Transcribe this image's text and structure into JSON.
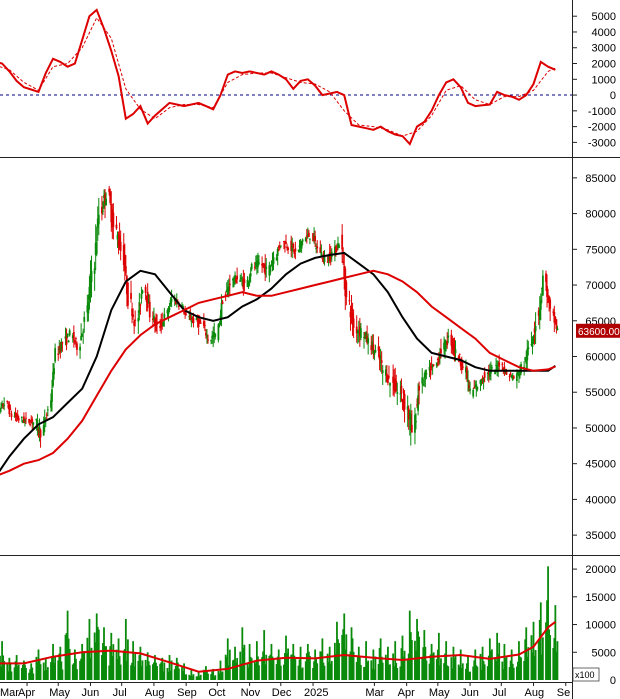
{
  "chart_data": [
    {
      "type": "line",
      "panel": "oscillator",
      "title": "",
      "ylim": [
        -3800,
        5900
      ],
      "y_ticks": [
        5000,
        4000,
        3000,
        2000,
        1000,
        0,
        -1000,
        -2000,
        -3000
      ],
      "zero_line": "dashed",
      "series": [
        {
          "color": "#dd0000",
          "style": "solid",
          "x": [
            "2024-03-01",
            "2024-03-08",
            "2024-03-15",
            "2024-03-22",
            "2024-03-29",
            "2024-04-05",
            "2024-04-12",
            "2024-04-19",
            "2024-04-26",
            "2024-05-03",
            "2024-05-10",
            "2024-05-17",
            "2024-05-24",
            "2024-05-31",
            "2024-06-07",
            "2024-06-14",
            "2024-06-21",
            "2024-06-28",
            "2024-07-05",
            "2024-07-12",
            "2024-07-19",
            "2024-07-26",
            "2024-08-02",
            "2024-08-09",
            "2024-08-16",
            "2024-08-23",
            "2024-08-30",
            "2024-09-06",
            "2024-09-13",
            "2024-09-20",
            "2024-09-27",
            "2024-10-04",
            "2024-10-11",
            "2024-10-18",
            "2024-10-25",
            "2024-11-01",
            "2024-11-08",
            "2024-11-15",
            "2024-11-22",
            "2024-11-29",
            "2024-12-06",
            "2024-12-13",
            "2024-12-20",
            "2024-12-27",
            "2025-01-03",
            "2025-01-10",
            "2025-01-17",
            "2025-01-24",
            "2025-01-31",
            "2025-02-07",
            "2025-02-14",
            "2025-02-21",
            "2025-02-28",
            "2025-03-07",
            "2025-03-14",
            "2025-03-21",
            "2025-03-28",
            "2025-04-04",
            "2025-04-11",
            "2025-04-18",
            "2025-04-25",
            "2025-05-02",
            "2025-05-09",
            "2025-05-16",
            "2025-05-23",
            "2025-05-30",
            "2025-06-06",
            "2025-06-13",
            "2025-06-20",
            "2025-06-27",
            "2025-07-04",
            "2025-07-11",
            "2025-07-18",
            "2025-07-25",
            "2025-08-01",
            "2025-08-08",
            "2025-08-15",
            "2025-08-22"
          ],
          "values": [
            2100,
            2000,
            1500,
            900,
            500,
            350,
            200,
            1400,
            2300,
            2100,
            1800,
            2000,
            3500,
            5000,
            5400,
            4200,
            2800,
            1200,
            -1500,
            -1200,
            -700,
            -1800,
            -1300,
            -900,
            -500,
            -600,
            -700,
            -600,
            -500,
            -700,
            -900,
            0,
            1300,
            1500,
            1400,
            1500,
            1400,
            1300,
            1500,
            1300,
            1000,
            400,
            900,
            1000,
            600,
            0,
            100,
            200,
            0,
            -1900,
            -2000,
            -2100,
            -2200,
            -2000,
            -2300,
            -2500,
            -2600,
            -3100,
            -2000,
            -1700,
            -1000,
            0,
            800,
            1000,
            500,
            -500,
            -700,
            -650,
            -600,
            200,
            0,
            -100,
            -300,
            0,
            700,
            2100,
            1800,
            1600
          ]
        },
        {
          "color": "#dd0000",
          "style": "dashed",
          "x": [
            "2024-03-01",
            "2024-03-15",
            "2024-03-29",
            "2024-04-12",
            "2024-04-26",
            "2024-05-10",
            "2024-05-24",
            "2024-06-07",
            "2024-06-21",
            "2024-07-05",
            "2024-07-19",
            "2024-08-02",
            "2024-08-16",
            "2024-08-30",
            "2024-09-13",
            "2024-09-27",
            "2024-10-11",
            "2024-10-25",
            "2024-11-08",
            "2024-11-22",
            "2024-12-06",
            "2024-12-20",
            "2025-01-03",
            "2025-01-17",
            "2025-01-31",
            "2025-02-14",
            "2025-02-28",
            "2025-03-14",
            "2025-03-28",
            "2025-04-11",
            "2025-04-25",
            "2025-05-09",
            "2025-05-23",
            "2025-06-06",
            "2025-06-20",
            "2025-07-04",
            "2025-07-18",
            "2025-08-01",
            "2025-08-15",
            "2025-08-22"
          ],
          "values": [
            1900,
            1600,
            800,
            300,
            1800,
            2000,
            3000,
            4900,
            3600,
            400,
            -900,
            -1500,
            -800,
            -600,
            -600,
            -800,
            800,
            1300,
            1400,
            1400,
            1100,
            800,
            700,
            200,
            -1000,
            -1900,
            -2000,
            -2200,
            -2600,
            -2300,
            -1300,
            300,
            600,
            -300,
            -600,
            -100,
            -100,
            300,
            1500,
            1700
          ]
        }
      ]
    },
    {
      "type": "candlestick",
      "panel": "price",
      "title": "",
      "ylim": [
        32500,
        87500
      ],
      "y_ticks": [
        85000,
        80000,
        75000,
        70000,
        65000,
        60000,
        55000,
        50000,
        45000,
        40000,
        35000
      ],
      "last_price_label": "63600.00",
      "last_price": 63600,
      "candle_colors": {
        "up": "#0a8a0a",
        "down": "#dd0000"
      },
      "ohlc_weekly": {
        "x": [
          "2024-03-01",
          "2024-03-08",
          "2024-03-15",
          "2024-03-22",
          "2024-03-29",
          "2024-04-05",
          "2024-04-12",
          "2024-04-19",
          "2024-04-26",
          "2024-05-03",
          "2024-05-10",
          "2024-05-17",
          "2024-05-24",
          "2024-05-31",
          "2024-06-07",
          "2024-06-14",
          "2024-06-21",
          "2024-06-28",
          "2024-07-05",
          "2024-07-12",
          "2024-07-19",
          "2024-07-26",
          "2024-08-02",
          "2024-08-09",
          "2024-08-16",
          "2024-08-23",
          "2024-08-30",
          "2024-09-06",
          "2024-09-13",
          "2024-09-20",
          "2024-09-27",
          "2024-10-04",
          "2024-10-11",
          "2024-10-18",
          "2024-10-25",
          "2024-11-01",
          "2024-11-08",
          "2024-11-15",
          "2024-11-22",
          "2024-11-29",
          "2024-12-06",
          "2024-12-13",
          "2024-12-20",
          "2024-12-27",
          "2025-01-03",
          "2025-01-10",
          "2025-01-17",
          "2025-01-24",
          "2025-01-31",
          "2025-02-07",
          "2025-02-14",
          "2025-02-21",
          "2025-02-28",
          "2025-03-07",
          "2025-03-14",
          "2025-03-21",
          "2025-03-28",
          "2025-04-04",
          "2025-04-11",
          "2025-04-18",
          "2025-04-25",
          "2025-05-02",
          "2025-05-09",
          "2025-05-16",
          "2025-05-23",
          "2025-05-30",
          "2025-06-06",
          "2025-06-13",
          "2025-06-20",
          "2025-06-27",
          "2025-07-04",
          "2025-07-11",
          "2025-07-18",
          "2025-07-25",
          "2025-08-01",
          "2025-08-08",
          "2025-08-15",
          "2025-08-22"
        ],
        "close": [
          52000,
          53500,
          51800,
          51200,
          51000,
          50800,
          49500,
          52500,
          60500,
          62000,
          63000,
          61500,
          65000,
          72000,
          80000,
          83000,
          78000,
          75000,
          68000,
          64500,
          70000,
          66000,
          64000,
          65500,
          68000,
          67500,
          65500,
          65000,
          64500,
          62500,
          63000,
          68000,
          70500,
          71000,
          70000,
          72500,
          73000,
          72000,
          74000,
          76000,
          75500,
          74500,
          76500,
          77000,
          75000,
          73500,
          74500,
          76000,
          68000,
          64000,
          63500,
          62000,
          60500,
          58000,
          56500,
          55000,
          53500,
          49500,
          56000,
          57500,
          58500,
          61000,
          62500,
          60500,
          58500,
          55000,
          56000,
          57500,
          58000,
          59000,
          57500,
          57000,
          58500,
          61000,
          65000,
          71000,
          66000,
          63600
        ],
        "range": [
          3000,
          2500,
          2500,
          2000,
          2000,
          2000,
          3500,
          3000,
          3000,
          3500,
          3000,
          3000,
          4000,
          5000,
          6000,
          5000,
          5000,
          4500,
          4000,
          4000,
          4000,
          3500,
          3000,
          3000,
          3000,
          2500,
          2000,
          2000,
          2500,
          2500,
          3000,
          3000,
          3000,
          2500,
          3000,
          2500,
          2500,
          3000,
          3000,
          3000,
          2500,
          3000,
          2500,
          2500,
          3000,
          2500,
          3000,
          2500,
          5000,
          4500,
          4000,
          3500,
          3500,
          4000,
          4000,
          4000,
          5000,
          8000,
          5000,
          3500,
          3500,
          3500,
          3000,
          3000,
          3000,
          3000,
          2500,
          2500,
          2500,
          2500,
          2000,
          2000,
          2500,
          3000,
          4500,
          6000,
          4000,
          3000
        ]
      },
      "series": [
        {
          "color": "#000000",
          "x": [
            "2024-03-01",
            "2024-03-15",
            "2024-03-29",
            "2024-04-12",
            "2024-04-26",
            "2024-05-10",
            "2024-05-24",
            "2024-06-07",
            "2024-06-21",
            "2024-07-05",
            "2024-07-19",
            "2024-08-02",
            "2024-08-16",
            "2024-08-30",
            "2024-09-13",
            "2024-09-27",
            "2024-10-11",
            "2024-10-25",
            "2024-11-08",
            "2024-11-22",
            "2024-12-06",
            "2024-12-20",
            "2025-01-03",
            "2025-01-17",
            "2025-01-31",
            "2025-02-14",
            "2025-02-28",
            "2025-03-14",
            "2025-03-28",
            "2025-04-11",
            "2025-04-25",
            "2025-05-09",
            "2025-05-23",
            "2025-06-06",
            "2025-06-20",
            "2025-07-04",
            "2025-07-18",
            "2025-08-01",
            "2025-08-15",
            "2025-08-22"
          ],
          "values": [
            43000,
            46000,
            48500,
            50500,
            51500,
            53500,
            55500,
            60000,
            66500,
            70500,
            72000,
            71500,
            69000,
            66500,
            65500,
            65000,
            65500,
            67000,
            68000,
            69500,
            71500,
            73000,
            73800,
            74200,
            74500,
            73000,
            71500,
            69000,
            65500,
            62500,
            60500,
            60000,
            59500,
            58500,
            58000,
            58000,
            58000,
            58000,
            58000,
            58700
          ]
        },
        {
          "color": "#dd0000",
          "x": [
            "2024-03-01",
            "2024-03-15",
            "2024-03-29",
            "2024-04-12",
            "2024-04-26",
            "2024-05-10",
            "2024-05-24",
            "2024-06-07",
            "2024-06-21",
            "2024-07-05",
            "2024-07-19",
            "2024-08-02",
            "2024-08-16",
            "2024-08-30",
            "2024-09-13",
            "2024-09-27",
            "2024-10-11",
            "2024-10-25",
            "2024-11-08",
            "2024-11-22",
            "2024-12-06",
            "2024-12-20",
            "2025-01-03",
            "2025-01-17",
            "2025-01-31",
            "2025-02-14",
            "2025-02-28",
            "2025-03-14",
            "2025-03-28",
            "2025-04-11",
            "2025-04-25",
            "2025-05-09",
            "2025-05-23",
            "2025-06-06",
            "2025-06-20",
            "2025-07-04",
            "2025-07-18",
            "2025-08-01",
            "2025-08-15",
            "2025-08-22"
          ],
          "values": [
            43200,
            44000,
            45000,
            45500,
            46500,
            48500,
            51000,
            54500,
            58000,
            61000,
            63000,
            64500,
            65500,
            66500,
            67500,
            68000,
            68500,
            69000,
            68500,
            68500,
            69000,
            69500,
            70000,
            70500,
            71000,
            71500,
            72000,
            71500,
            70500,
            69000,
            67000,
            65500,
            64000,
            62500,
            60500,
            59500,
            58500,
            58000,
            58200,
            58600
          ]
        }
      ]
    },
    {
      "type": "bar",
      "panel": "volume",
      "title": "",
      "ylim": [
        0,
        22000
      ],
      "y_ticks": [
        20000,
        15000,
        10000,
        5000,
        0
      ],
      "unit_label": "x100",
      "x_tick_labels": [
        "Mar",
        "Apr",
        "May",
        "Jun",
        "Jul",
        "Aug",
        "Sep",
        "Oct",
        "Nov",
        "Dec",
        "2025",
        "Mar",
        "Apr",
        "May",
        "Jun",
        "Jul",
        "Aug",
        "Se"
      ],
      "bar_color": "#0a8a0a",
      "x": [
        "2024-03-01",
        "2024-03-08",
        "2024-03-15",
        "2024-03-22",
        "2024-03-29",
        "2024-04-05",
        "2024-04-12",
        "2024-04-19",
        "2024-04-26",
        "2024-05-03",
        "2024-05-10",
        "2024-05-17",
        "2024-05-24",
        "2024-05-31",
        "2024-06-07",
        "2024-06-14",
        "2024-06-21",
        "2024-06-28",
        "2024-07-05",
        "2024-07-12",
        "2024-07-19",
        "2024-07-26",
        "2024-08-02",
        "2024-08-09",
        "2024-08-16",
        "2024-08-23",
        "2024-08-30",
        "2024-09-06",
        "2024-09-13",
        "2024-09-20",
        "2024-09-27",
        "2024-10-04",
        "2024-10-11",
        "2024-10-18",
        "2024-10-25",
        "2024-11-01",
        "2024-11-08",
        "2024-11-15",
        "2024-11-22",
        "2024-11-29",
        "2024-12-06",
        "2024-12-13",
        "2024-12-20",
        "2024-12-27",
        "2025-01-03",
        "2025-01-10",
        "2025-01-17",
        "2025-01-24",
        "2025-01-31",
        "2025-02-07",
        "2025-02-14",
        "2025-02-21",
        "2025-02-28",
        "2025-03-07",
        "2025-03-14",
        "2025-03-21",
        "2025-03-28",
        "2025-04-04",
        "2025-04-11",
        "2025-04-18",
        "2025-04-25",
        "2025-05-02",
        "2025-05-09",
        "2025-05-16",
        "2025-05-23",
        "2025-05-30",
        "2025-06-06",
        "2025-06-13",
        "2025-06-20",
        "2025-06-27",
        "2025-07-04",
        "2025-07-11",
        "2025-07-18",
        "2025-07-25",
        "2025-08-01",
        "2025-08-08",
        "2025-08-15",
        "2025-08-22"
      ],
      "values": [
        5000,
        7000,
        4000,
        4500,
        3500,
        3000,
        5500,
        4000,
        6500,
        6000,
        12500,
        5500,
        6500,
        11000,
        12000,
        9500,
        8500,
        7500,
        11000,
        7000,
        6000,
        5000,
        4500,
        4000,
        4500,
        4000,
        3000,
        2000,
        1500,
        2500,
        2000,
        3500,
        7500,
        6000,
        9500,
        6500,
        7000,
        9000,
        6500,
        5500,
        8000,
        6500,
        6000,
        6500,
        5500,
        7500,
        6000,
        10500,
        12000,
        9500,
        6000,
        7000,
        5500,
        7500,
        6000,
        7000,
        8000,
        12500,
        11000,
        9000,
        6500,
        8500,
        7000,
        6000,
        5500,
        4500,
        5500,
        6000,
        7500,
        8500,
        6500,
        5500,
        7000,
        9500,
        10500,
        14000,
        20500,
        13500
      ],
      "ma_series": {
        "color": "#dd0000",
        "x": [
          "2024-03-01",
          "2024-03-29",
          "2024-04-26",
          "2024-05-24",
          "2024-06-21",
          "2024-07-19",
          "2024-08-16",
          "2024-09-13",
          "2024-10-11",
          "2024-11-08",
          "2024-12-06",
          "2025-01-03",
          "2025-01-31",
          "2025-02-28",
          "2025-03-28",
          "2025-04-25",
          "2025-05-23",
          "2025-06-20",
          "2025-07-18",
          "2025-08-01",
          "2025-08-15",
          "2025-08-22"
        ],
        "values": [
          3000,
          3000,
          4200,
          5000,
          5300,
          4800,
          3200,
          1500,
          2000,
          3500,
          4000,
          3900,
          4500,
          4000,
          3600,
          4200,
          4500,
          3800,
          4600,
          6000,
          9500,
          10500
        ]
      }
    }
  ]
}
